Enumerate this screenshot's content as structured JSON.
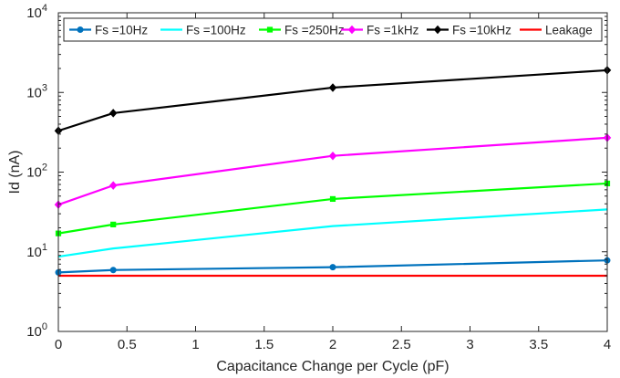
{
  "chart_data": {
    "type": "line",
    "xlabel": "Capacitance Change per Cycle (pF)",
    "ylabel": "Id (nA)",
    "xlim": [
      0,
      4
    ],
    "ylim": [
      1,
      10000
    ],
    "yscale": "log",
    "grid": false,
    "legend_placement": "top",
    "x_ticks": [
      0,
      0.5,
      1,
      1.5,
      2,
      2.5,
      3,
      3.5,
      4
    ],
    "x_tick_labels": [
      "0",
      "0.5",
      "1",
      "1.5",
      "2",
      "2.5",
      "3",
      "3.5",
      "4"
    ],
    "y_ticks": [
      1,
      10,
      100,
      1000,
      10000
    ],
    "y_tick_labels": [
      {
        "base": "10",
        "exp": "0"
      },
      {
        "base": "10",
        "exp": "1"
      },
      {
        "base": "10",
        "exp": "2"
      },
      {
        "base": "10",
        "exp": "3"
      },
      {
        "base": "10",
        "exp": "4"
      }
    ],
    "series": [
      {
        "name": "Fs =10Hz",
        "color": "#0072BD",
        "marker": "circle",
        "x": [
          0,
          0.4,
          2,
          4
        ],
        "values": [
          5.5,
          5.9,
          6.4,
          7.8
        ]
      },
      {
        "name": "Fs =100Hz",
        "color": "#00FFFF",
        "marker": "none",
        "x": [
          0,
          0.4,
          2,
          4
        ],
        "values": [
          8.7,
          11,
          21,
          34
        ]
      },
      {
        "name": "Fs =250Hz",
        "color": "#00FF00",
        "marker": "square",
        "x": [
          0,
          0.4,
          2,
          4
        ],
        "values": [
          17,
          22,
          46,
          72
        ]
      },
      {
        "name": "Fs =1kHz",
        "color": "#FF00FF",
        "marker": "diamond",
        "x": [
          0,
          0.4,
          2,
          4
        ],
        "values": [
          39,
          68,
          160,
          270
        ]
      },
      {
        "name": "Fs =10kHz",
        "color": "#000000",
        "marker": "diamond",
        "x": [
          0,
          0.4,
          2,
          4
        ],
        "values": [
          330,
          550,
          1150,
          1900
        ]
      },
      {
        "name": "Leakage",
        "color": "#FF0000",
        "marker": "none",
        "x": [
          0,
          4
        ],
        "values": [
          5,
          5
        ]
      }
    ]
  }
}
